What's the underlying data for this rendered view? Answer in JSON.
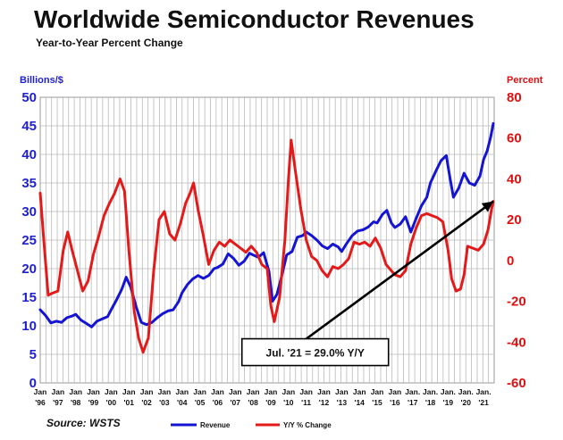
{
  "chart_data": {
    "type": "line",
    "title": "Worldwide Semiconductor Revenues",
    "subtitle": "Year-to-Year Percent Change",
    "ylabel_left": "Billions/$",
    "ylabel_right": "Percent",
    "ylim_left": [
      0,
      50
    ],
    "ylim_right": [
      -60,
      80
    ],
    "yticks_left": [
      "0",
      "5",
      "10",
      "15",
      "20",
      "25",
      "30",
      "35",
      "40",
      "45",
      "50"
    ],
    "yticks_right": [
      "-60",
      "-40",
      "-20",
      "0",
      "20",
      "40",
      "60",
      "80"
    ],
    "xlim": [
      1996.0,
      2021.6
    ],
    "xticks": [
      {
        "year": 1996,
        "top": "Jan",
        "bottom": "'96"
      },
      {
        "year": 1997,
        "top": "Jan",
        "bottom": "'97"
      },
      {
        "year": 1998,
        "top": "Jan",
        "bottom": "'98"
      },
      {
        "year": 1999,
        "top": "Jan",
        "bottom": "'99"
      },
      {
        "year": 2000,
        "top": "Jan",
        "bottom": "'00"
      },
      {
        "year": 2001,
        "top": "Jan",
        "bottom": "'01"
      },
      {
        "year": 2002,
        "top": "Jan",
        "bottom": "'02"
      },
      {
        "year": 2003,
        "top": "Jan",
        "bottom": "'03"
      },
      {
        "year": 2004,
        "top": "Jan",
        "bottom": "'04"
      },
      {
        "year": 2005,
        "top": "Jan",
        "bottom": "'05"
      },
      {
        "year": 2006,
        "top": "Jan",
        "bottom": "'06"
      },
      {
        "year": 2007,
        "top": "Jan",
        "bottom": "'07"
      },
      {
        "year": 2008,
        "top": "Jan",
        "bottom": "'08"
      },
      {
        "year": 2009,
        "top": "Jan",
        "bottom": "'09"
      },
      {
        "year": 2010,
        "top": "Jan",
        "bottom": "'10"
      },
      {
        "year": 2011,
        "top": "Jan",
        "bottom": "'11"
      },
      {
        "year": 2012,
        "top": "Jan",
        "bottom": "'12"
      },
      {
        "year": 2013,
        "top": "Jan",
        "bottom": "'13"
      },
      {
        "year": 2014,
        "top": "Jan",
        "bottom": "'14"
      },
      {
        "year": 2015,
        "top": "Jan",
        "bottom": "'15"
      },
      {
        "year": 2016,
        "top": "Jan",
        "bottom": "'16"
      },
      {
        "year": 2017,
        "top": "Jan.",
        "bottom": "'17"
      },
      {
        "year": 2018,
        "top": "Jan.",
        "bottom": "'18"
      },
      {
        "year": 2019,
        "top": "Jan.",
        "bottom": "'19"
      },
      {
        "year": 2020,
        "top": "Jan.",
        "bottom": "'20"
      },
      {
        "year": 2021,
        "top": "Jan.",
        "bottom": "'21"
      }
    ],
    "series": [
      {
        "name": "Revenue",
        "axis": "left",
        "color": "#1414d2",
        "points": [
          [
            1996.0,
            12.8
          ],
          [
            1996.3,
            11.8
          ],
          [
            1996.6,
            10.5
          ],
          [
            1996.9,
            10.8
          ],
          [
            1997.2,
            10.6
          ],
          [
            1997.5,
            11.4
          ],
          [
            1997.8,
            11.7
          ],
          [
            1998.0,
            12.0
          ],
          [
            1998.3,
            11.0
          ],
          [
            1998.6,
            10.4
          ],
          [
            1998.9,
            9.8
          ],
          [
            1999.2,
            10.8
          ],
          [
            1999.5,
            11.2
          ],
          [
            1999.8,
            11.6
          ],
          [
            2000.0,
            12.8
          ],
          [
            2000.3,
            14.5
          ],
          [
            2000.6,
            16.4
          ],
          [
            2000.85,
            18.5
          ],
          [
            2001.1,
            16.8
          ],
          [
            2001.4,
            13.4
          ],
          [
            2001.7,
            10.6
          ],
          [
            2002.0,
            10.2
          ],
          [
            2002.3,
            10.6
          ],
          [
            2002.6,
            11.4
          ],
          [
            2002.9,
            12.1
          ],
          [
            2003.2,
            12.6
          ],
          [
            2003.5,
            12.8
          ],
          [
            2003.8,
            14.2
          ],
          [
            2004.0,
            15.8
          ],
          [
            2004.3,
            17.2
          ],
          [
            2004.6,
            18.2
          ],
          [
            2004.9,
            18.8
          ],
          [
            2005.2,
            18.3
          ],
          [
            2005.5,
            18.8
          ],
          [
            2005.8,
            20.0
          ],
          [
            2006.0,
            20.2
          ],
          [
            2006.3,
            20.8
          ],
          [
            2006.6,
            22.6
          ],
          [
            2006.9,
            21.8
          ],
          [
            2007.2,
            20.6
          ],
          [
            2007.5,
            21.3
          ],
          [
            2007.8,
            22.7
          ],
          [
            2008.0,
            22.4
          ],
          [
            2008.3,
            22.0
          ],
          [
            2008.6,
            22.8
          ],
          [
            2008.9,
            19.5
          ],
          [
            2009.1,
            14.3
          ],
          [
            2009.35,
            15.5
          ],
          [
            2009.6,
            18.5
          ],
          [
            2009.9,
            22.4
          ],
          [
            2010.2,
            23.0
          ],
          [
            2010.5,
            25.5
          ],
          [
            2010.8,
            25.8
          ],
          [
            2011.0,
            26.4
          ],
          [
            2011.3,
            25.8
          ],
          [
            2011.6,
            25.0
          ],
          [
            2011.9,
            24.0
          ],
          [
            2012.2,
            23.5
          ],
          [
            2012.5,
            24.3
          ],
          [
            2012.8,
            23.8
          ],
          [
            2013.0,
            23.0
          ],
          [
            2013.3,
            24.5
          ],
          [
            2013.6,
            25.8
          ],
          [
            2013.9,
            26.6
          ],
          [
            2014.2,
            26.8
          ],
          [
            2014.5,
            27.3
          ],
          [
            2014.8,
            28.2
          ],
          [
            2015.0,
            28.0
          ],
          [
            2015.3,
            29.5
          ],
          [
            2015.55,
            30.2
          ],
          [
            2015.8,
            28.0
          ],
          [
            2016.0,
            27.2
          ],
          [
            2016.3,
            27.8
          ],
          [
            2016.6,
            29.1
          ],
          [
            2016.9,
            26.4
          ],
          [
            2017.2,
            28.8
          ],
          [
            2017.5,
            31.0
          ],
          [
            2017.8,
            32.5
          ],
          [
            2018.0,
            35.0
          ],
          [
            2018.3,
            37.0
          ],
          [
            2018.6,
            38.9
          ],
          [
            2018.9,
            39.8
          ],
          [
            2019.1,
            36.0
          ],
          [
            2019.3,
            32.5
          ],
          [
            2019.6,
            34.1
          ],
          [
            2019.9,
            36.7
          ],
          [
            2020.2,
            35.0
          ],
          [
            2020.5,
            34.6
          ],
          [
            2020.8,
            36.2
          ],
          [
            2021.0,
            39.1
          ],
          [
            2021.2,
            40.6
          ],
          [
            2021.4,
            43.0
          ],
          [
            2021.55,
            45.4
          ]
        ]
      },
      {
        "name": "Y/Y % Change",
        "axis": "right",
        "color": "#e41a1a",
        "points": [
          [
            1996.0,
            33
          ],
          [
            1996.2,
            10
          ],
          [
            1996.45,
            -17
          ],
          [
            1996.7,
            -16
          ],
          [
            1997.0,
            -15
          ],
          [
            1997.3,
            5
          ],
          [
            1997.55,
            14
          ],
          [
            1997.8,
            5
          ],
          [
            1998.1,
            -5
          ],
          [
            1998.4,
            -15
          ],
          [
            1998.7,
            -10
          ],
          [
            1999.0,
            3
          ],
          [
            1999.3,
            12
          ],
          [
            1999.6,
            22
          ],
          [
            1999.9,
            28
          ],
          [
            2000.2,
            33
          ],
          [
            2000.5,
            40
          ],
          [
            2000.75,
            34
          ],
          [
            2001.0,
            5
          ],
          [
            2001.3,
            -25
          ],
          [
            2001.55,
            -38
          ],
          [
            2001.8,
            -45
          ],
          [
            2002.1,
            -38
          ],
          [
            2002.4,
            -5
          ],
          [
            2002.7,
            20
          ],
          [
            2003.0,
            24
          ],
          [
            2003.3,
            13
          ],
          [
            2003.6,
            10
          ],
          [
            2003.9,
            18
          ],
          [
            2004.2,
            28
          ],
          [
            2004.45,
            33
          ],
          [
            2004.65,
            38
          ],
          [
            2004.9,
            25
          ],
          [
            2005.2,
            12
          ],
          [
            2005.5,
            -2
          ],
          [
            2005.8,
            5
          ],
          [
            2006.1,
            9
          ],
          [
            2006.4,
            7
          ],
          [
            2006.7,
            10
          ],
          [
            2007.0,
            8
          ],
          [
            2007.3,
            6
          ],
          [
            2007.6,
            4
          ],
          [
            2007.9,
            7
          ],
          [
            2008.2,
            4
          ],
          [
            2008.5,
            -2
          ],
          [
            2008.8,
            -4
          ],
          [
            2009.0,
            -22
          ],
          [
            2009.2,
            -30
          ],
          [
            2009.5,
            -18
          ],
          [
            2009.8,
            10
          ],
          [
            2010.0,
            40
          ],
          [
            2010.15,
            59
          ],
          [
            2010.4,
            43
          ],
          [
            2010.7,
            25
          ],
          [
            2011.0,
            10
          ],
          [
            2011.3,
            2
          ],
          [
            2011.6,
            0
          ],
          [
            2011.9,
            -5
          ],
          [
            2012.2,
            -8
          ],
          [
            2012.5,
            -3
          ],
          [
            2012.8,
            -4
          ],
          [
            2013.1,
            -2
          ],
          [
            2013.4,
            1
          ],
          [
            2013.7,
            9
          ],
          [
            2014.0,
            8
          ],
          [
            2014.3,
            9
          ],
          [
            2014.6,
            7
          ],
          [
            2014.9,
            11
          ],
          [
            2015.2,
            6
          ],
          [
            2015.5,
            -2
          ],
          [
            2015.8,
            -5
          ],
          [
            2016.0,
            -7
          ],
          [
            2016.3,
            -8
          ],
          [
            2016.6,
            -5
          ],
          [
            2016.9,
            8
          ],
          [
            2017.2,
            16
          ],
          [
            2017.5,
            22
          ],
          [
            2017.8,
            23
          ],
          [
            2018.1,
            22
          ],
          [
            2018.4,
            21
          ],
          [
            2018.7,
            19
          ],
          [
            2019.0,
            5
          ],
          [
            2019.2,
            -9
          ],
          [
            2019.45,
            -15
          ],
          [
            2019.7,
            -14
          ],
          [
            2019.9,
            -7
          ],
          [
            2020.1,
            7
          ],
          [
            2020.4,
            6
          ],
          [
            2020.7,
            5
          ],
          [
            2021.0,
            8
          ],
          [
            2021.25,
            15
          ],
          [
            2021.45,
            25
          ],
          [
            2021.55,
            29
          ]
        ]
      }
    ],
    "annotation": {
      "text": "Jul. '21 = 29.0% Y/Y",
      "arrow_to": [
        2021.55,
        29.0
      ],
      "arrow_from": [
        2010.6,
        -41.0
      ]
    },
    "source": "Source: WSTS",
    "legend_position": "bottom"
  },
  "colors": {
    "revenue_line": "#1414d2",
    "yoy_line": "#e41a1a",
    "left_axis_text": "#1f1fcf",
    "right_axis_text": "#e01010"
  }
}
